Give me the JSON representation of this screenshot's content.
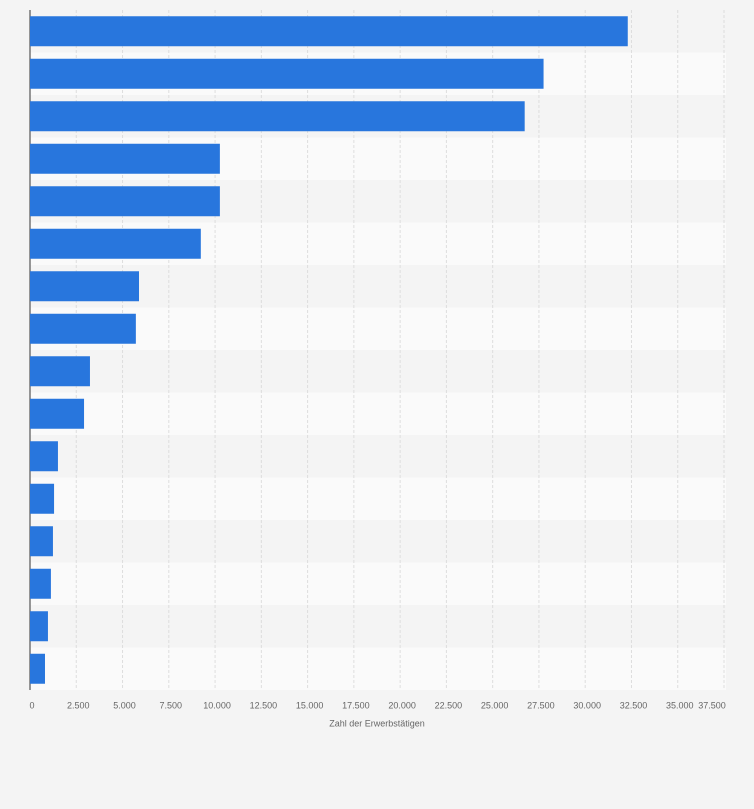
{
  "chart_data": {
    "type": "bar",
    "orientation": "horizontal",
    "x_label": "Zahl der Erwerbstätigen",
    "categories": [
      null,
      null,
      null,
      null,
      null,
      null,
      null,
      null,
      null,
      null,
      null,
      null,
      null,
      null,
      null,
      null
    ],
    "values": [
      32300,
      27750,
      26730,
      10260,
      10260,
      9230,
      5890,
      5720,
      3240,
      2920,
      1510,
      1300,
      1240,
      1130,
      970,
      810
    ],
    "color": "#2876dd",
    "xlim": [
      0,
      37500
    ],
    "xticks": [
      0,
      {
        "value": 2500,
        "label": "2.500"
      },
      {
        "value": 5000,
        "label": "5.000"
      },
      {
        "value": 7500,
        "label": "7.500"
      },
      {
        "value": 10000,
        "label": "10.000"
      },
      {
        "value": 12500,
        "label": "12.500"
      },
      {
        "value": 15000,
        "label": "15.000"
      },
      {
        "value": 17500,
        "label": "17.500"
      },
      {
        "value": 20000,
        "label": "20.000"
      },
      {
        "value": 22500,
        "label": "22.500"
      },
      {
        "value": 25000,
        "label": "25.000"
      },
      {
        "value": 27500,
        "label": "27.500"
      },
      {
        "value": 30000,
        "label": "30.000"
      },
      {
        "value": 32500,
        "label": "32.500"
      },
      {
        "value": 35000,
        "label": "35.000"
      },
      {
        "value": 37500,
        "label": "37.500"
      }
    ],
    "grid": true
  }
}
